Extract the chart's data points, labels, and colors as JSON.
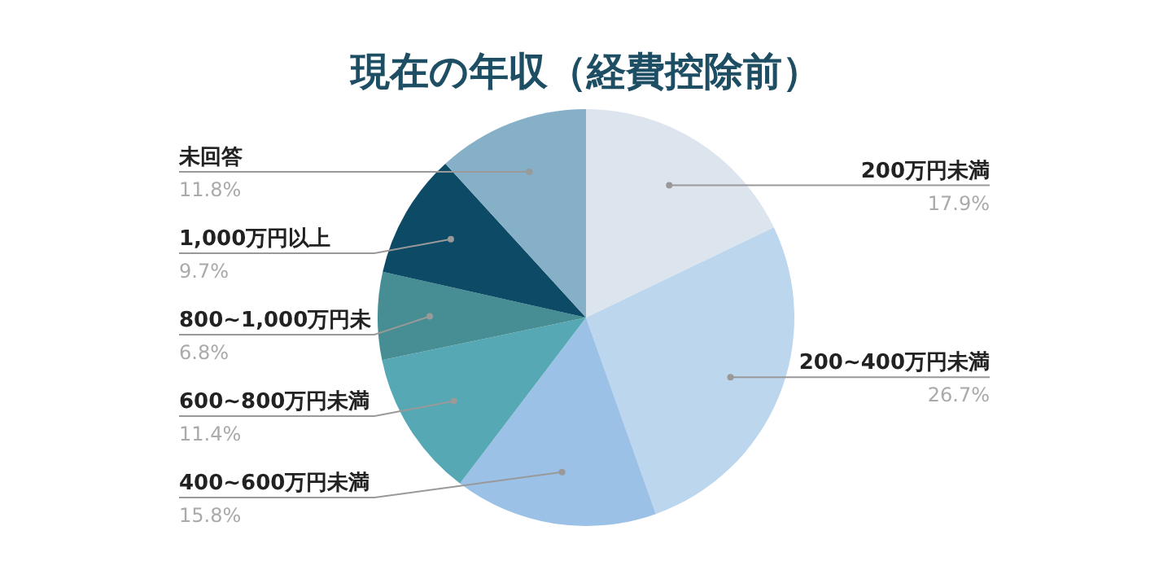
{
  "chart_data": {
    "type": "pie",
    "title": "現在の年収（経費控除前）",
    "categories": [
      "200万円未満",
      "200~400万円未満",
      "400~600万円未満",
      "600~800万円未満",
      "800~1,000万円未",
      "1,000万円以上",
      "未回答"
    ],
    "values": [
      17.9,
      26.7,
      15.8,
      11.4,
      6.8,
      9.7,
      11.8
    ],
    "value_labels": [
      "17.9%",
      "26.7%",
      "15.8%",
      "11.4%",
      "6.8%",
      "9.7%",
      "11.8%"
    ],
    "colors": [
      "#dce5ed",
      "#bcd6ee",
      "#9cc1e6",
      "#56a8b4",
      "#468e93",
      "#0d4a66",
      "#85b0c8"
    ]
  }
}
